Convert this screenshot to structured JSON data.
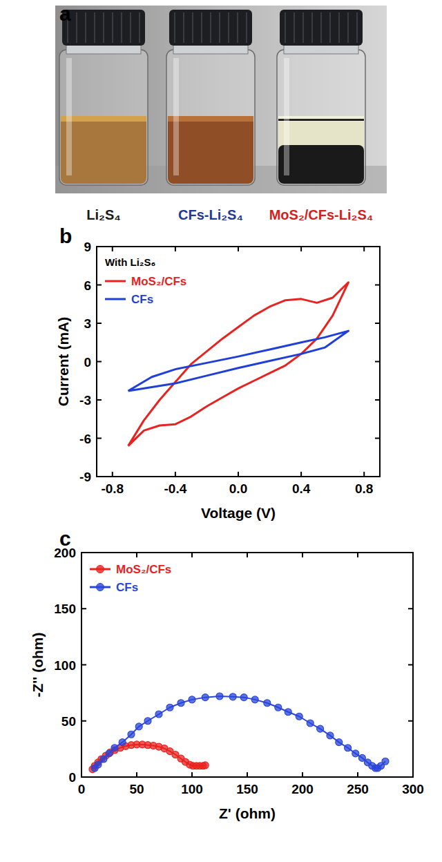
{
  "chart_data": [
    {
      "type": "photo",
      "panel": "a",
      "captions": [
        {
          "text": "Li₂S₄",
          "color": "#1a1a1a"
        },
        {
          "text": "CFs-Li₂S₄",
          "color": "#1f3a93"
        },
        {
          "text": "MoS₂/CFs-Li₂S₄",
          "color": "#d41f1f"
        }
      ]
    },
    {
      "type": "line",
      "panel": "b",
      "annotations": [
        "With Li₂S₆"
      ],
      "x_label": "Voltage (V)",
      "y_label": "Current (mA)",
      "xlim": [
        -0.9,
        0.9
      ],
      "xticks": [
        -0.8,
        -0.4,
        {
          "value": 0,
          "label": "0.0"
        },
        0.4,
        0.8
      ],
      "ylim": [
        -9,
        9
      ],
      "yticks": [
        -9,
        -6,
        -3,
        0,
        3,
        6,
        9
      ],
      "legend": "upper left",
      "series": [
        {
          "name": "MoS₂/CFs",
          "color": "#e8231f",
          "line_style": "solid",
          "x": [
            -0.7,
            -0.6,
            -0.5,
            -0.4,
            -0.3,
            -0.2,
            -0.1,
            0,
            0.1,
            0.2,
            0.3,
            0.4,
            0.5,
            0.6,
            0.7,
            0.6,
            0.5,
            0.4,
            0.3,
            0.2,
            0.1,
            0,
            -0.1,
            -0.2,
            -0.3,
            -0.4,
            -0.5,
            -0.6,
            -0.7
          ],
          "values": [
            -6.6,
            -4.6,
            -3.0,
            -1.6,
            -0.2,
            0.8,
            1.8,
            2.7,
            3.6,
            4.3,
            4.8,
            4.9,
            4.6,
            5.0,
            6.2,
            3.6,
            1.8,
            0.6,
            -0.3,
            -0.9,
            -1.5,
            -2.1,
            -2.8,
            -3.5,
            -4.3,
            -4.9,
            -5.0,
            -5.4,
            -6.6
          ]
        },
        {
          "name": "CFs",
          "color": "#1f3fd6",
          "line_style": "solid",
          "x": [
            -0.7,
            -0.55,
            -0.4,
            -0.2,
            0,
            0.2,
            0.4,
            0.55,
            0.7,
            0.55,
            0.4,
            0.2,
            0,
            -0.2,
            -0.4,
            -0.55,
            -0.7
          ],
          "values": [
            -2.3,
            -1.2,
            -0.6,
            -0.1,
            0.4,
            0.95,
            1.5,
            1.9,
            2.4,
            1.1,
            0.6,
            0.05,
            -0.5,
            -1.1,
            -1.7,
            -2.0,
            -2.3
          ]
        }
      ]
    },
    {
      "type": "line",
      "panel": "c",
      "x_label": "Z' (ohm)",
      "y_label": "-Z'' (ohm)",
      "xlim": [
        0,
        300
      ],
      "xticks": [
        0,
        50,
        100,
        150,
        200,
        250,
        300
      ],
      "ylim": [
        0,
        200
      ],
      "yticks": [
        0,
        50,
        100,
        150,
        200
      ],
      "legend": "upper left",
      "series": [
        {
          "name": "MoS₂/CFs",
          "color": "#e8231f",
          "marker": "circle",
          "line_style": "solid",
          "x": [
            10,
            12,
            15,
            18,
            22,
            26,
            30,
            35,
            40,
            45,
            50,
            55,
            60,
            65,
            70,
            75,
            80,
            85,
            90,
            94,
            98,
            101,
            104,
            107,
            110,
            112
          ],
          "values": [
            7,
            10,
            13,
            16,
            19,
            22,
            24,
            26,
            27.5,
            28.5,
            29,
            29,
            28.5,
            28,
            27,
            25.5,
            23,
            20,
            16.5,
            13.5,
            11,
            10,
            10,
            10,
            10,
            10.5
          ]
        },
        {
          "name": "CFs",
          "color": "#2a46d8",
          "marker": "circle",
          "line_style": "solid",
          "x": [
            12,
            15,
            20,
            25,
            30,
            37,
            45,
            52,
            60,
            70,
            80,
            90,
            100,
            112,
            125,
            137,
            147,
            157,
            168,
            178,
            187,
            197,
            207,
            216,
            225,
            233,
            241,
            248,
            254,
            259,
            263,
            266,
            268,
            271,
            275
          ],
          "values": [
            8,
            11,
            16,
            21,
            26,
            31,
            38,
            45,
            50,
            56,
            62,
            66,
            69,
            71,
            72,
            71.5,
            71,
            69,
            66,
            62,
            58,
            54,
            48,
            43,
            37,
            31,
            26,
            21,
            17,
            13,
            10,
            8,
            8,
            10,
            14
          ]
        }
      ]
    }
  ]
}
